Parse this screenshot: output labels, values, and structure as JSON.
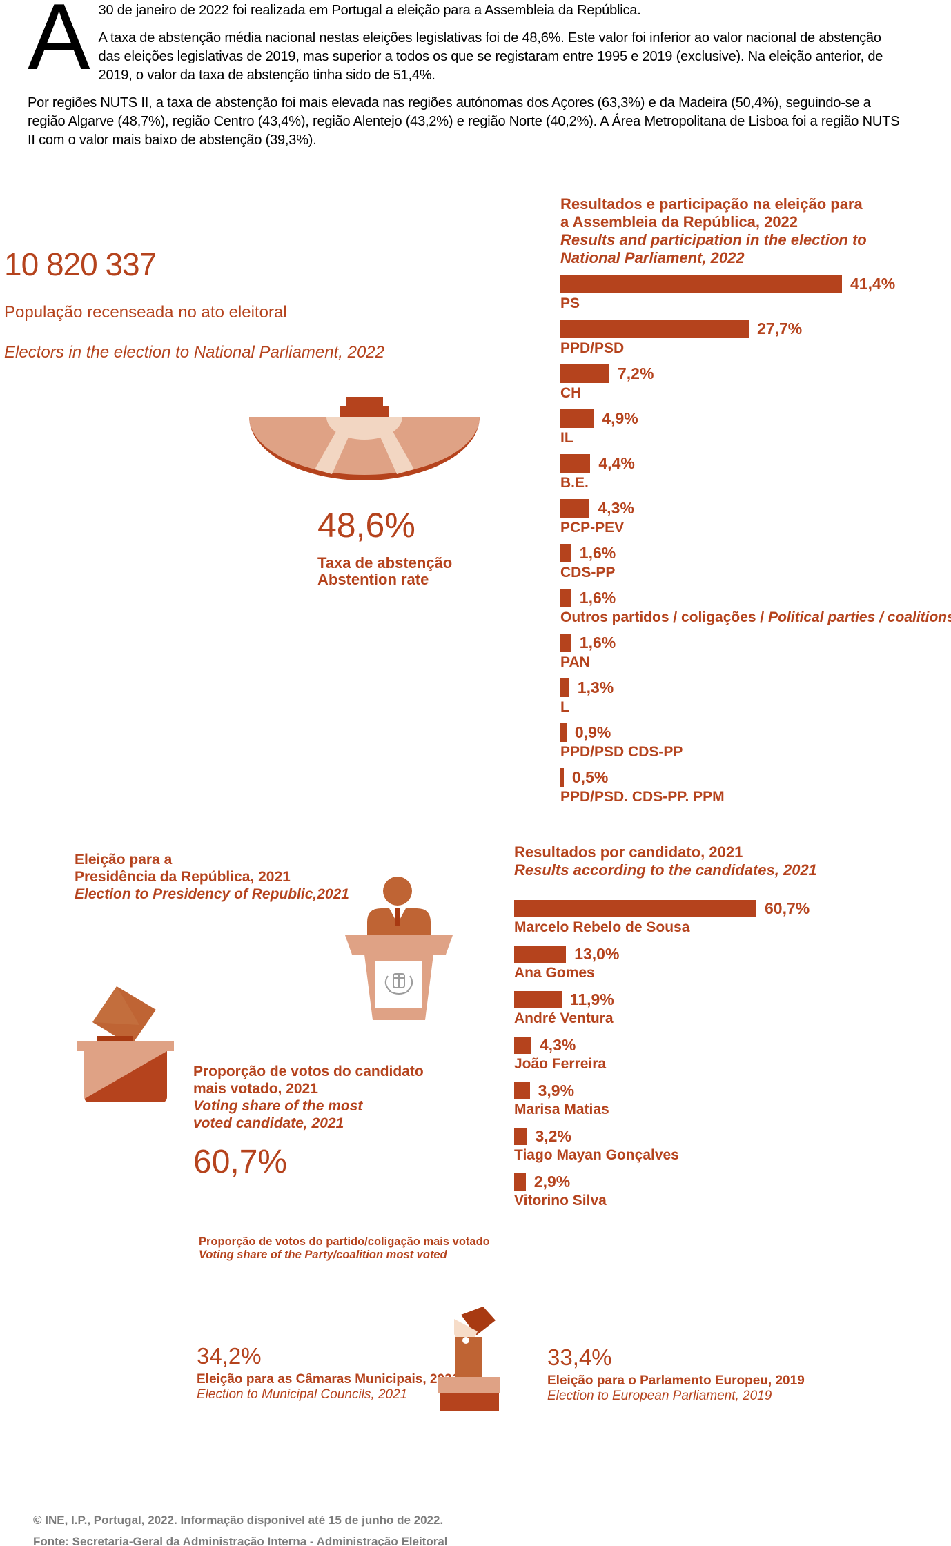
{
  "colors": {
    "primary": "#b5431d",
    "salmon": "#dfa285",
    "light_salmon": "#f2d6c2",
    "mid_orange": "#bf6434",
    "dark_red": "#a83a12",
    "skin": "#f6dcc8",
    "footer_grey": "#7c7c7c",
    "emblem_grey": "#9c9c9c",
    "text_black": "#000000"
  },
  "icons": {
    "abstention": "parliament-hemicycle-icon",
    "presidency": "speaker-podium-icon",
    "top_candidate": "ballot-box-icon",
    "bottom": "voting-hand-icon"
  },
  "intro": {
    "drop_cap": "A",
    "p1": "30 de janeiro de 2022 foi realizada em Portugal a eleição para a Assembleia da República.",
    "p2": "A taxa de abstenção média nacional nestas eleições legislativas foi de 48,6%. Este valor foi inferior ao valor nacional de abstenção das eleições legislativas de 2019, mas superior a todos os que se registaram entre 1995 e 2019 (exclusive). Na eleição anterior, de 2019, o valor da taxa de abstenção tinha sido de 51,4%.",
    "p3": "Por regiões NUTS II, a taxa de abstenção foi mais elevada nas regiões autónomas dos Açores (63,3%) e da Madeira (50,4%), seguindo-se a região Algarve (48,7%), região Centro (43,4%), região Alentejo (43,2%) e região Norte (40,2%). A Área Metropolitana de Lisboa foi a região NUTS II com o valor mais baixo de abstenção (39,3%)."
  },
  "electors": {
    "value": "10 820 337",
    "label_pt": "População recenseada no ato eleitoral",
    "label_en": "Electors in the election to National Parliament, 2022"
  },
  "abstention": {
    "value": "48,6%",
    "label_pt": "Taxa de abstenção",
    "label_en": "Abstention rate"
  },
  "chart_data": [
    {
      "type": "bar",
      "title_pt_1": "Resultados e participação na eleição para",
      "title_pt_2": "a Assembleia da República, 2022",
      "title_en_1": "Results and participation in the election to",
      "title_en_2": "National Parliament, 2022",
      "xlabel": "",
      "ylabel": "",
      "xlim": [
        0,
        45
      ],
      "grid": false,
      "value_suffix": "%",
      "rows": [
        {
          "label": "PS",
          "value": 41.4,
          "value_label": "41,4%"
        },
        {
          "label": "PPD/PSD",
          "value": 27.7,
          "value_label": "27,7%"
        },
        {
          "label": "CH",
          "value": 7.2,
          "value_label": "7,2%"
        },
        {
          "label": "IL",
          "value": 4.9,
          "value_label": "4,9%"
        },
        {
          "label": "B.E.",
          "value": 4.4,
          "value_label": "4,4%"
        },
        {
          "label": "PCP-PEV",
          "value": 4.3,
          "value_label": "4,3%"
        },
        {
          "label": "CDS-PP",
          "value": 1.6,
          "value_label": "1,6%"
        },
        {
          "label": "Outros partidos / coligações /",
          "label_italic": "Political parties / coalitions",
          "value": 1.6,
          "value_label": "1,6%"
        },
        {
          "label": "PAN",
          "value": 1.6,
          "value_label": "1,6%"
        },
        {
          "label": "L",
          "value": 1.3,
          "value_label": "1,3%"
        },
        {
          "label": "PPD/PSD CDS-PP",
          "value": 0.9,
          "value_label": "0,9%"
        },
        {
          "label": "PPD/PSD. CDS-PP. PPM",
          "value": 0.5,
          "value_label": "0,5%"
        }
      ]
    },
    {
      "type": "bar",
      "title_pt_1": "Resultados por candidato, 2021",
      "title_en_1": "Results according to the candidates, 2021",
      "xlabel": "",
      "ylabel": "",
      "xlim": [
        0,
        65
      ],
      "grid": false,
      "value_suffix": "%",
      "rows": [
        {
          "label": "Marcelo Rebelo de Sousa",
          "value": 60.7,
          "value_label": "60,7%"
        },
        {
          "label": "Ana Gomes",
          "value": 13.0,
          "value_label": "13,0%"
        },
        {
          "label": "André Ventura",
          "value": 11.9,
          "value_label": "11,9%"
        },
        {
          "label": "João Ferreira",
          "value": 4.3,
          "value_label": "4,3%"
        },
        {
          "label": "Marisa Matias",
          "value": 3.9,
          "value_label": "3,9%"
        },
        {
          "label": "Tiago Mayan Gonçalves",
          "value": 3.2,
          "value_label": "3,2%"
        },
        {
          "label": "Vitorino Silva",
          "value": 2.9,
          "value_label": "2,9%"
        }
      ]
    }
  ],
  "presidency": {
    "title_pt_1": "Eleição para a",
    "title_pt_2": "Presidência da República, 2021",
    "title_en": "Election to Presidency of Republic,2021"
  },
  "top_candidate": {
    "label_pt_1": "Proporção de votos do candidato",
    "label_pt_2": "mais votado, 2021",
    "label_en_1": "Voting share of the most",
    "label_en_2": "voted candidate, 2021",
    "value": "60,7%"
  },
  "party_note": {
    "pt": "Proporção de votos do partido/coligação mais votado",
    "en": "Voting share of the Party/coalition most voted"
  },
  "municipal": {
    "value": "34,2%",
    "pt": "Eleição para as Câmaras Municipais, 2021",
    "en": "Election to Municipal Councils, 2021"
  },
  "european": {
    "value": "33,4%",
    "pt": "Eleição para o Parlamento Europeu, 2019",
    "en": "Election to European Parliament, 2019"
  },
  "footer": {
    "line1": "© INE, I.P., Portugal, 2022. Informação disponível até 15 de junho de 2022.",
    "line2": "Fonte: Secretaria-Geral da Administração Interna - Administração Eleitoral"
  }
}
